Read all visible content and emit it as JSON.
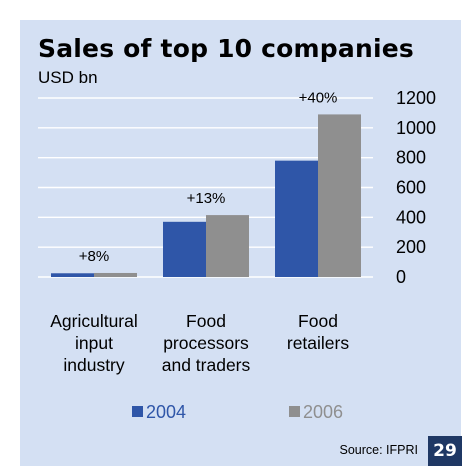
{
  "title": "Sales of top 10 companies",
  "unit": "USD bn",
  "source": "Source: IFPRI",
  "page_number": "29",
  "colors": {
    "background": "#d4e0f3",
    "series_2004": "#2f56a8",
    "series_2006": "#8f8f8f",
    "gridline": "#ffffff",
    "badge": "#1f3864"
  },
  "chart_data": {
    "type": "bar",
    "categories": [
      [
        "Agricultural",
        "input",
        "industry"
      ],
      [
        "Food",
        "processors",
        "and traders"
      ],
      [
        "Food",
        "retailers"
      ]
    ],
    "series": [
      {
        "name": "2004",
        "values": [
          25,
          370,
          780
        ]
      },
      {
        "name": "2006",
        "values": [
          27,
          415,
          1090
        ]
      }
    ],
    "annotations": [
      "+8%",
      "+13%",
      "+40%"
    ],
    "y_ticks": [
      0,
      200,
      400,
      600,
      800,
      1000,
      1200
    ],
    "ylim": [
      0,
      1200
    ],
    "grid": true,
    "legend": "bottom"
  }
}
